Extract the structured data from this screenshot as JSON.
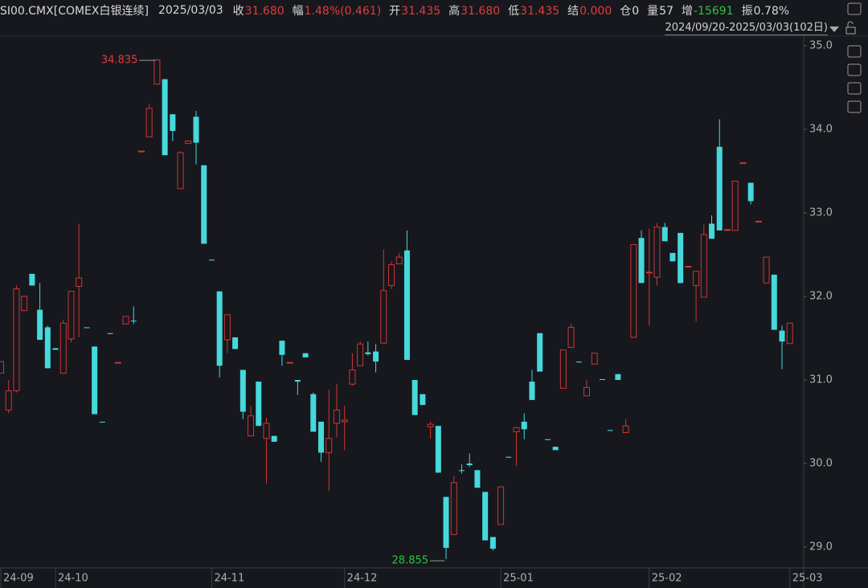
{
  "header": {
    "symbol": "SI00.CMX[COMEX白银连续]",
    "date": "2025/03/03",
    "range": "2024/09/20-2025/03/03(102日)",
    "fields": [
      {
        "label": "收",
        "value": "31.680",
        "color": "#e23c3c"
      },
      {
        "label": "幅",
        "value": "1.48%(0.461)",
        "color": "#e23c3c"
      },
      {
        "label": "开",
        "value": "31.435",
        "color": "#e23c3c"
      },
      {
        "label": "高",
        "value": "31.680",
        "color": "#e23c3c"
      },
      {
        "label": "低",
        "value": "31.435",
        "color": "#e23c3c"
      },
      {
        "label": "结",
        "value": "0.000",
        "color": "#e23c3c"
      },
      {
        "label": "仓",
        "value": "0",
        "color": "#d8d8d8"
      },
      {
        "label": "量",
        "value": "57",
        "color": "#d8d8d8"
      },
      {
        "label": "增",
        "value": "-15691",
        "color": "#2fc43a"
      },
      {
        "label": "振",
        "value": "0.78%",
        "color": "#d8d8d8"
      }
    ]
  },
  "chart_data": {
    "type": "candlestick",
    "categories": [
      "24-09",
      null,
      null,
      null,
      null,
      null,
      null,
      "24-10",
      null,
      null,
      null,
      null,
      null,
      null,
      null,
      null,
      null,
      null,
      null,
      null,
      null,
      null,
      null,
      null,
      null,
      null,
      null,
      "24-11",
      null,
      null,
      null,
      null,
      null,
      null,
      null,
      null,
      null,
      null,
      null,
      null,
      null,
      null,
      null,
      null,
      "24-12",
      null,
      null,
      null,
      null,
      null,
      null,
      null,
      null,
      null,
      null,
      null,
      null,
      null,
      null,
      null,
      null,
      null,
      null,
      null,
      "25-01",
      null,
      null,
      null,
      null,
      null,
      null,
      null,
      null,
      null,
      null,
      null,
      null,
      null,
      null,
      null,
      null,
      null,
      null,
      "25-02",
      null,
      null,
      null,
      null,
      null,
      null,
      null,
      null,
      null,
      null,
      null,
      null,
      null,
      null,
      null,
      null,
      null,
      "25-03"
    ],
    "open": [
      31.08,
      30.64,
      30.87,
      31.83,
      32.27,
      31.84,
      31.63,
      31.38,
      31.08,
      31.49,
      32.12,
      31.63,
      31.4,
      30.5,
      31.56,
      31.2,
      31.67,
      31.71,
      33.73,
      33.91,
      34.54,
      34.6,
      34.18,
      33.29,
      33.83,
      34.15,
      33.57,
      32.44,
      32.06,
      31.48,
      31.51,
      31.12,
      30.33,
      30.98,
      30.3,
      30.33,
      31.47,
      31.2,
      31.0,
      31.32,
      30.83,
      30.5,
      30.13,
      30.48,
      30.5,
      30.95,
      31.17,
      31.33,
      31.34,
      31.44,
      32.13,
      32.39,
      32.55,
      31.0,
      30.83,
      30.44,
      30.45,
      29.6,
      29.15,
      29.92,
      30.0,
      29.92,
      29.66,
      29.12,
      29.27,
      30.08,
      30.38,
      30.5,
      30.98,
      31.56,
      30.29,
      30.2,
      30.9,
      31.39,
      31.22,
      30.81,
      31.19,
      31.01,
      30.4,
      31.07,
      30.37,
      31.51,
      32.7,
      32.28,
      32.23,
      32.83,
      32.52,
      32.76,
      32.35,
      32.13,
      31.99,
      32.87,
      33.79,
      32.79,
      32.79,
      33.59,
      33.36,
      32.89,
      32.16,
      32.26,
      31.59,
      31.435
    ],
    "high": [
      31.22,
      31.0,
      32.13,
      32.01,
      32.27,
      32.16,
      31.65,
      31.38,
      31.72,
      32.06,
      32.87,
      31.63,
      31.4,
      30.5,
      31.56,
      31.21,
      31.76,
      31.88,
      33.74,
      34.3,
      34.835,
      34.6,
      34.18,
      33.74,
      33.86,
      34.22,
      33.57,
      32.44,
      32.06,
      31.78,
      31.51,
      31.12,
      30.69,
      30.98,
      30.55,
      30.33,
      31.47,
      31.21,
      31.0,
      31.32,
      30.85,
      30.5,
      30.88,
      30.95,
      30.69,
      31.32,
      31.46,
      31.46,
      31.43,
      32.56,
      32.42,
      32.52,
      32.79,
      31.0,
      30.83,
      30.5,
      30.45,
      29.6,
      29.85,
      29.99,
      30.12,
      29.92,
      29.66,
      29.12,
      29.72,
      30.08,
      30.43,
      30.6,
      31.12,
      31.56,
      30.29,
      30.2,
      31.36,
      31.67,
      31.22,
      31.0,
      31.32,
      31.01,
      30.4,
      31.07,
      30.53,
      32.62,
      32.79,
      32.81,
      32.88,
      32.88,
      32.52,
      32.76,
      32.36,
      32.3,
      32.86,
      32.97,
      34.12,
      32.8,
      33.38,
      33.6,
      33.36,
      32.9,
      32.47,
      32.26,
      31.65,
      31.68
    ],
    "low": [
      31.08,
      30.6,
      30.85,
      31.83,
      32.13,
      31.48,
      31.14,
      31.36,
      31.08,
      31.45,
      31.51,
      31.62,
      30.59,
      30.49,
      31.55,
      31.2,
      31.67,
      31.67,
      33.73,
      33.91,
      34.54,
      33.69,
      33.86,
      33.29,
      33.83,
      33.58,
      32.63,
      32.43,
      31.03,
      31.32,
      31.37,
      30.53,
      30.33,
      30.45,
      29.76,
      30.26,
      31.17,
      31.2,
      30.82,
      31.27,
      30.38,
      30.02,
      29.67,
      30.31,
      30.16,
      30.93,
      31.17,
      31.29,
      31.09,
      31.44,
      32.09,
      32.39,
      31.24,
      30.58,
      30.7,
      30.3,
      29.89,
      28.855,
      29.15,
      29.88,
      29.96,
      29.71,
      29.08,
      28.96,
      29.27,
      30.07,
      29.97,
      30.29,
      30.76,
      31.1,
      30.28,
      30.16,
      30.9,
      31.39,
      31.21,
      30.81,
      31.19,
      31.0,
      30.39,
      31.0,
      30.37,
      31.51,
      32.16,
      31.65,
      32.13,
      32.66,
      32.42,
      32.16,
      32.35,
      31.7,
      31.99,
      32.69,
      32.79,
      32.79,
      32.79,
      33.59,
      33.1,
      32.89,
      32.16,
      31.6,
      31.13,
      31.435
    ],
    "close": [
      31.22,
      30.87,
      32.09,
      32.0,
      32.13,
      31.48,
      31.14,
      31.36,
      31.68,
      32.06,
      32.22,
      31.62,
      30.59,
      30.49,
      31.55,
      31.21,
      31.76,
      31.7,
      33.74,
      34.25,
      34.83,
      33.69,
      33.98,
      33.72,
      33.86,
      33.84,
      32.63,
      32.43,
      31.17,
      31.78,
      31.37,
      30.62,
      30.57,
      30.45,
      30.48,
      30.26,
      31.3,
      31.21,
      30.98,
      31.27,
      30.38,
      30.13,
      30.3,
      30.64,
      30.52,
      31.12,
      31.43,
      31.31,
      31.22,
      32.07,
      32.38,
      32.47,
      31.24,
      30.58,
      30.7,
      30.47,
      29.89,
      28.99,
      29.77,
      29.91,
      29.98,
      29.71,
      29.08,
      28.98,
      29.72,
      30.07,
      30.43,
      30.41,
      30.76,
      31.1,
      30.28,
      30.16,
      31.36,
      31.63,
      31.21,
      30.91,
      31.32,
      31.0,
      30.39,
      31.0,
      30.45,
      32.62,
      32.16,
      32.29,
      32.83,
      32.66,
      32.42,
      32.16,
      32.36,
      32.3,
      32.74,
      32.69,
      32.79,
      32.8,
      33.38,
      33.6,
      33.14,
      32.9,
      32.47,
      31.6,
      31.46,
      31.68
    ],
    "up_color": "#d03535",
    "down_color": "#45d9dc",
    "high_label_color": "#e23c3c",
    "low_label_color": "#2fc43a",
    "ylim": [
      28.75,
      35.115
    ],
    "yticks": [
      {
        "value": 29,
        "label": "29.0"
      },
      {
        "value": 30,
        "label": "30.0"
      },
      {
        "value": 31,
        "label": "31.0"
      },
      {
        "value": 32,
        "label": "32.0"
      },
      {
        "value": 33,
        "label": "33.0"
      },
      {
        "value": 34,
        "label": "34.0"
      },
      {
        "value": 35,
        "label": "35.0"
      }
    ]
  }
}
